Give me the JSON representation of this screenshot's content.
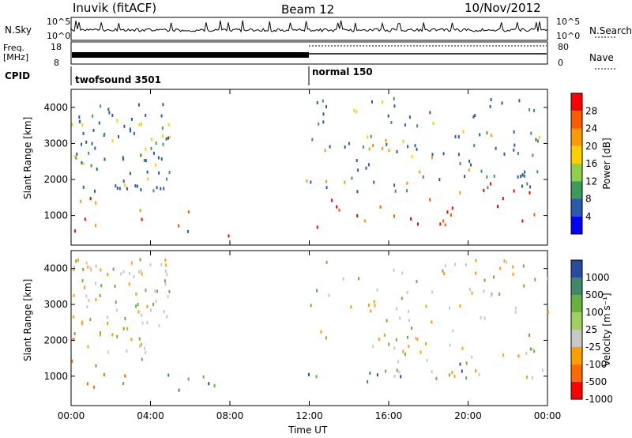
{
  "header": {
    "station": "Inuvik (fitACF)",
    "beam": "Beam 12",
    "date": "10/Nov/2012"
  },
  "top_panels": {
    "nsky_label": "N.Sky",
    "nsky_ticks": [
      "10^5",
      "10^0"
    ],
    "nsearch_label": "N.Search",
    "nsearch_ticks": [
      "10^5",
      "10^0"
    ],
    "freq_label_1": "Freq.",
    "freq_label_2": "[MHz]",
    "freq_ticks": [
      "18",
      "8"
    ],
    "nave_label": "Nave",
    "nave_ticks": [
      "80",
      "0"
    ],
    "cpid_label": "CPID",
    "cpid_modes": [
      {
        "name": "twofsound 3501",
        "start_hour": 0,
        "end_hour": 12
      },
      {
        "name": "normal 150",
        "start_hour": 12,
        "end_hour": 24
      }
    ]
  },
  "chart_data": [
    {
      "type": "heatmap",
      "title": "",
      "xlabel": "Time UT",
      "ylabel": "Slant Range [km]",
      "colorbar_label": "Power [dB]",
      "colorbar_ticks": [
        "28",
        "24",
        "20",
        "16",
        "12",
        "8",
        "4"
      ],
      "colorbar_colors": [
        "#ff0000",
        "#ff5a00",
        "#ff9a00",
        "#ffd000",
        "#8ed04a",
        "#3c9a5a",
        "#2a5aaa",
        "#0000ff"
      ],
      "x_ticks": [
        "00:00",
        "04:00",
        "08:00",
        "12:00",
        "16:00",
        "20:00",
        "00:00"
      ],
      "xlim_hours": [
        0,
        24
      ],
      "ylim_km": [
        180,
        4500
      ],
      "y_ticks": [
        1000,
        2000,
        3000,
        4000
      ],
      "regions": [
        {
          "t0": 0.0,
          "t1": 4.5,
          "r0": 600,
          "r1": 1600,
          "level": "high"
        },
        {
          "t0": 4.3,
          "t1": 6.0,
          "r0": 300,
          "r1": 1200,
          "level": "mid"
        },
        {
          "t0": 6.0,
          "t1": 8.0,
          "r0": 200,
          "r1": 500,
          "level": "high"
        },
        {
          "t0": 11.8,
          "t1": 24.0,
          "r0": 700,
          "r1": 1800,
          "level": "high"
        },
        {
          "t0": 11.8,
          "t1": 24.0,
          "r0": 1800,
          "r1": 3300,
          "level": "low"
        },
        {
          "t0": 19.5,
          "t1": 22.5,
          "r0": 1300,
          "r1": 2000,
          "level": "high"
        }
      ]
    },
    {
      "type": "heatmap",
      "title": "",
      "xlabel": "Time UT",
      "ylabel": "Slant Range [km]",
      "colorbar_label": "Velocity [m s⁻¹]",
      "colorbar_ticks": [
        "1000",
        "500",
        "100",
        "25",
        "-25",
        "-100",
        "-500",
        "-1000"
      ],
      "colorbar_colors": [
        "#2a4aa0",
        "#3c8a6a",
        "#6ab040",
        "#a0d060",
        "#c8c8c8",
        "#ffa000",
        "#ff6a00",
        "#ff0000"
      ],
      "x_ticks": [
        "00:00",
        "04:00",
        "08:00",
        "12:00",
        "16:00",
        "20:00",
        "00:00"
      ],
      "xlim_hours": [
        0,
        24
      ],
      "ylim_km": [
        180,
        4500
      ],
      "y_ticks": [
        1000,
        2000,
        3000,
        4000
      ],
      "regions": [
        {
          "t0": 0.0,
          "t1": 4.5,
          "r0": 600,
          "r1": 1700,
          "level": "neg"
        },
        {
          "t0": 4.3,
          "t1": 8.0,
          "r0": 200,
          "r1": 1200,
          "level": "pos"
        },
        {
          "t0": 11.8,
          "t1": 20.0,
          "r0": 700,
          "r1": 1800,
          "level": "pos"
        },
        {
          "t0": 16.0,
          "t1": 24.0,
          "r0": 700,
          "r1": 2200,
          "level": "zero"
        },
        {
          "t0": 20.0,
          "t1": 23.5,
          "r0": 1300,
          "r1": 2100,
          "level": "neg"
        }
      ]
    }
  ]
}
